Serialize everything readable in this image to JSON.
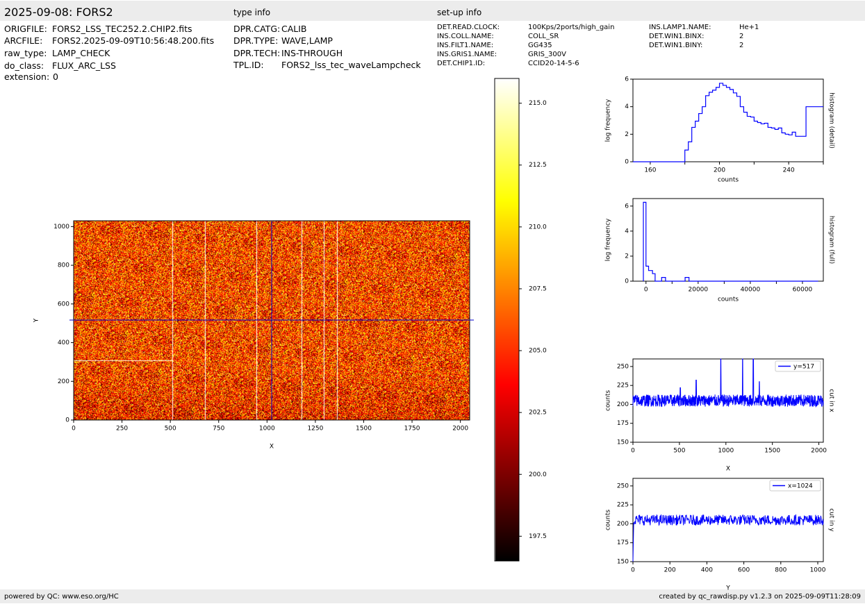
{
  "header": {
    "title": "2025-09-08: FORS2",
    "type_info_label": "type info",
    "setup_info_label": "set-up info"
  },
  "file_info": [
    {
      "key": "ORIGFILE:",
      "value": "FORS2_LSS_TEC252.2.CHIP2.fits"
    },
    {
      "key": "ARCFILE:",
      "value": "FORS2.2025-09-09T10:56:48.200.fits"
    },
    {
      "key": "raw_type:",
      "value": "LAMP_CHECK"
    },
    {
      "key": "do_class:",
      "value": "FLUX_ARC_LSS"
    },
    {
      "key": "extension:",
      "value": "0"
    }
  ],
  "type_info": [
    {
      "key": "DPR.CATG:",
      "value": "CALIB"
    },
    {
      "key": "DPR.TYPE:",
      "value": "WAVE,LAMP"
    },
    {
      "key": "DPR.TECH:",
      "value": "INS-THROUGH"
    },
    {
      "key": "TPL.ID:",
      "value": "FORS2_lss_tec_waveLampcheck"
    }
  ],
  "setup_info_col1": [
    {
      "key": "DET.READ.CLOCK:",
      "value": "100Kps/2ports/high_gain"
    },
    {
      "key": "INS.COLL.NAME:",
      "value": "COLL_SR"
    },
    {
      "key": "INS.FILT1.NAME:",
      "value": "GG435"
    },
    {
      "key": "INS.GRIS1.NAME:",
      "value": "GRIS_300V"
    },
    {
      "key": "DET.CHIP1.ID:",
      "value": "CCID20-14-5-6"
    }
  ],
  "setup_info_col2": [
    {
      "key": "INS.LAMP1.NAME:",
      "value": "He+1"
    },
    {
      "key": "DET.WIN1.BINX:",
      "value": "2"
    },
    {
      "key": "DET.WIN1.BINY:",
      "value": "2"
    }
  ],
  "footer": {
    "left": "powered by QC: www.eso.org/HC",
    "right": "created by qc_rawdisp.py v1.2.3 on 2025-09-09T11:28:09"
  },
  "colors": {
    "series": "#0000ff",
    "bar_bg": "#ececec",
    "crosshair": "#0000cc"
  },
  "chart_data": [
    {
      "type": "heatmap",
      "id": "image",
      "xlabel": "X",
      "ylabel": "Y",
      "xlim": [
        0,
        2048
      ],
      "ylim": [
        0,
        1030
      ],
      "xticks": [
        0,
        250,
        500,
        750,
        1000,
        1250,
        1500,
        1750,
        2000
      ],
      "yticks": [
        0,
        200,
        400,
        600,
        800,
        1000
      ],
      "colormap": "hot",
      "clim": [
        196.5,
        216.0
      ],
      "crosshair": {
        "x": 1024,
        "y": 517
      },
      "arc_lines_x": [
        510,
        680,
        945,
        1180,
        1295,
        1360
      ]
    },
    {
      "type": "colorbar",
      "id": "colorbar",
      "range": [
        196.5,
        216.0
      ],
      "ticks": [
        "215.0",
        "212.5",
        "210.0",
        "207.5",
        "205.0",
        "202.5",
        "200.0",
        "197.5"
      ]
    },
    {
      "type": "line",
      "id": "hist_detail",
      "xlabel": "counts",
      "ylabel": "log frequency",
      "side_label": "histogram (detail)",
      "xlim": [
        150,
        260
      ],
      "ylim": [
        0,
        6
      ],
      "xticks": [
        160,
        200,
        240
      ],
      "yticks": [
        0,
        2,
        4,
        6
      ],
      "x": [
        150,
        180,
        182,
        184,
        186,
        188,
        190,
        192,
        194,
        196,
        198,
        200,
        202,
        204,
        206,
        208,
        210,
        212,
        214,
        216,
        218,
        220,
        222,
        224,
        226,
        228,
        230,
        232,
        234,
        236,
        238,
        240,
        242,
        244,
        246,
        248,
        250,
        252,
        254,
        256,
        258,
        260
      ],
      "y": [
        0,
        0.85,
        1.45,
        2.5,
        2.95,
        3.5,
        4.0,
        4.8,
        5.05,
        5.2,
        5.4,
        5.7,
        5.55,
        5.4,
        5.25,
        5.0,
        4.75,
        4.0,
        3.6,
        3.3,
        3.25,
        2.95,
        2.85,
        2.75,
        2.8,
        2.5,
        2.45,
        2.35,
        2.45,
        2.1,
        2.0,
        1.95,
        2.15,
        1.85,
        1.85,
        1.85,
        4.0,
        4.0,
        4.0,
        4.0,
        4.0,
        4.0
      ]
    },
    {
      "type": "line",
      "id": "hist_full",
      "xlabel": "counts",
      "ylabel": "log frequency",
      "side_label": "histogram (full)",
      "xlim": [
        -5000,
        68000
      ],
      "ylim": [
        0,
        6.6
      ],
      "xticks": [
        0,
        20000,
        40000,
        60000
      ],
      "yticks": [
        0,
        2,
        4,
        6
      ],
      "x": [
        -1000,
        0,
        1000,
        2500,
        3500,
        5000,
        6000,
        7500,
        8500,
        15000,
        16500,
        18000,
        66000
      ],
      "y": [
        6.3,
        1.2,
        0.85,
        0.6,
        0,
        0,
        0.3,
        0,
        0,
        0.3,
        0,
        0,
        0
      ]
    },
    {
      "type": "line",
      "id": "cut_x",
      "xlabel": "X",
      "ylabel": "counts",
      "side_label": "cut in x",
      "legend": "y=517",
      "xlim": [
        0,
        2048
      ],
      "ylim": [
        150,
        260
      ],
      "xticks": [
        0,
        500,
        1000,
        1500,
        2000
      ],
      "yticks": [
        150,
        175,
        200,
        225,
        250
      ],
      "baseline": 205,
      "noise": 8,
      "peaks": [
        {
          "x": 510,
          "y": 222
        },
        {
          "x": 680,
          "y": 232
        },
        {
          "x": 945,
          "y": 260
        },
        {
          "x": 1180,
          "y": 260
        },
        {
          "x": 1295,
          "y": 260
        },
        {
          "x": 1360,
          "y": 230
        }
      ]
    },
    {
      "type": "line",
      "id": "cut_y",
      "xlabel": "Y",
      "ylabel": "counts",
      "side_label": "cut in y",
      "legend": "x=1024",
      "xlim": [
        0,
        1030
      ],
      "ylim": [
        150,
        260
      ],
      "xticks": [
        0,
        200,
        400,
        600,
        800,
        1000
      ],
      "yticks": [
        150,
        175,
        200,
        225,
        250
      ],
      "baseline": 205,
      "noise": 7,
      "start_dip": {
        "x": 0,
        "y": 150
      }
    }
  ]
}
